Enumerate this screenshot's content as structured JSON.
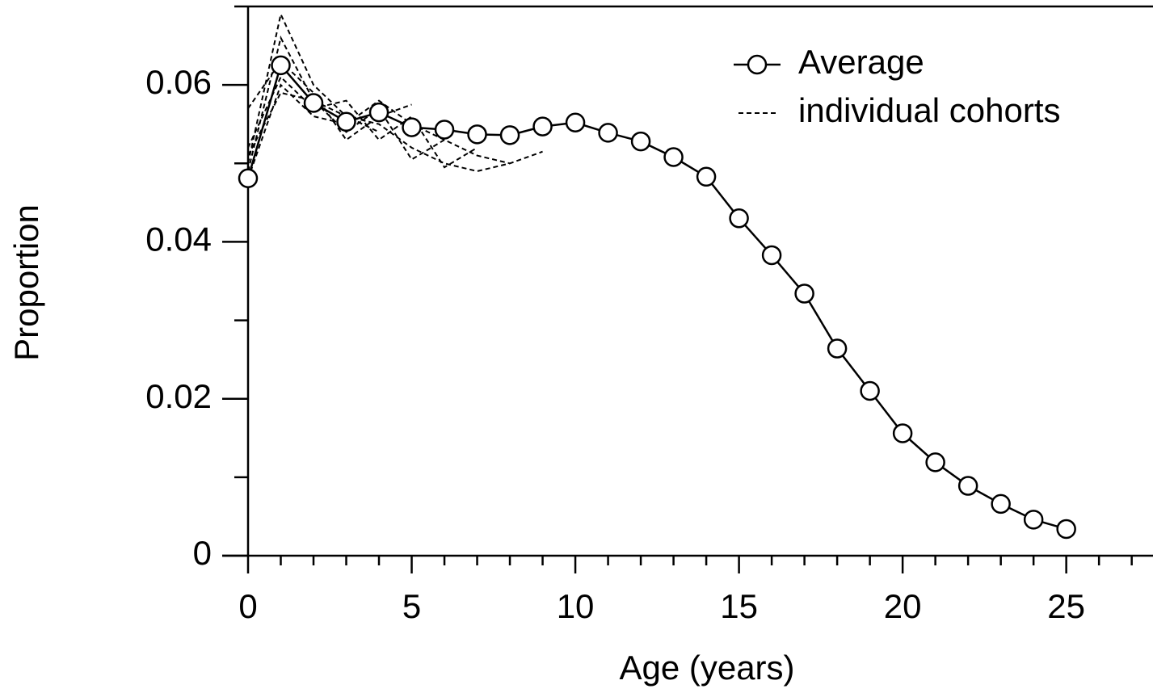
{
  "chart_data": {
    "type": "line",
    "xlabel": "Age (years)",
    "ylabel": "Proportion",
    "xlim": [
      0,
      27.65
    ],
    "ylim": [
      0,
      0.07
    ],
    "xticks": [
      0,
      5,
      10,
      15,
      20,
      25
    ],
    "xminor": [
      1,
      2,
      3,
      4,
      6,
      7,
      8,
      9,
      11,
      12,
      13,
      14,
      16,
      17,
      18,
      19,
      21,
      22,
      23,
      24,
      26,
      27
    ],
    "yticks": [
      0,
      0.02,
      0.04,
      0.06
    ],
    "yminor": [
      0.01,
      0.03,
      0.05
    ],
    "legend": "upper right",
    "series": [
      {
        "name": "Average",
        "color": "#000000",
        "x": [
          0,
          1,
          2,
          3,
          4,
          5,
          6,
          7,
          8,
          9,
          10,
          11,
          12,
          13,
          14,
          15,
          16,
          17,
          18,
          19,
          20,
          21,
          22,
          23,
          24,
          25
        ],
        "values": [
          0.0481,
          0.0625,
          0.0577,
          0.0553,
          0.0565,
          0.0546,
          0.0543,
          0.0537,
          0.0536,
          0.0547,
          0.0552,
          0.0539,
          0.0528,
          0.0508,
          0.0483,
          0.043,
          0.0383,
          0.0334,
          0.0264,
          0.021,
          0.0156,
          0.0119,
          0.0089,
          0.0066,
          0.0046,
          0.0034
        ]
      }
    ],
    "cohorts": {
      "name": "individual cohorts",
      "color": "#000000",
      "lines": [
        [
          0.05,
          0.069,
          0.06,
          0.056,
          0.055,
          0.052,
          0.05,
          0.049,
          0.05,
          0.0515
        ],
        [
          0.049,
          0.066,
          0.058,
          0.054,
          0.057,
          0.0505,
          0.053,
          0.051,
          0.05
        ],
        [
          0.052,
          0.061,
          0.057,
          0.058,
          0.053,
          0.056,
          0.0495,
          0.052
        ],
        [
          0.048,
          0.06,
          0.056,
          0.055,
          0.058,
          0.055,
          0.053
        ],
        [
          0.057,
          0.063,
          0.059,
          0.053,
          0.056,
          0.0575
        ],
        [
          0.051,
          0.059,
          0.058,
          0.056,
          0.054
        ]
      ]
    }
  }
}
